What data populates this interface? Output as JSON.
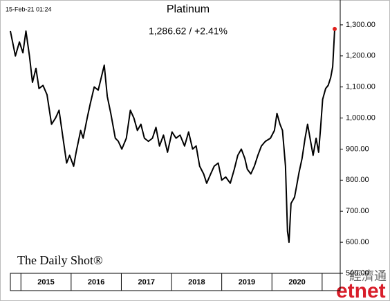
{
  "chart_data": {
    "type": "line",
    "title": "Platinum",
    "subtitle": "1,286.62  /  +2.41%",
    "timestamp": "15-Feb-21 01:24",
    "source": "The Daily Shot®",
    "watermark": "etnet",
    "watermark_cjk": "經濟通",
    "x": [
      2014.79,
      2014.89,
      2014.97,
      2015.04,
      2015.1,
      2015.17,
      2015.23,
      2015.3,
      2015.36,
      2015.44,
      2015.52,
      2015.61,
      2015.69,
      2015.76,
      2015.83,
      2015.91,
      2015.97,
      2016.05,
      2016.1,
      2016.19,
      2016.24,
      2016.32,
      2016.38,
      2016.46,
      2016.54,
      2016.66,
      2016.72,
      2016.79,
      2016.88,
      2016.94,
      2017.01,
      2017.1,
      2017.18,
      2017.25,
      2017.32,
      2017.39,
      2017.46,
      2017.54,
      2017.62,
      2017.69,
      2017.76,
      2017.84,
      2017.92,
      2018.01,
      2018.09,
      2018.17,
      2018.26,
      2018.34,
      2018.42,
      2018.49,
      2018.56,
      2018.64,
      2018.7,
      2018.78,
      2018.85,
      2018.93,
      2019.0,
      2019.08,
      2019.17,
      2019.25,
      2019.32,
      2019.39,
      2019.46,
      2019.51,
      2019.58,
      2019.65,
      2019.72,
      2019.79,
      2019.87,
      2019.97,
      2020.05,
      2020.1,
      2020.16,
      2020.21,
      2020.27,
      2020.31,
      2020.34,
      2020.38,
      2020.45,
      2020.49,
      2020.54,
      2020.6,
      2020.66,
      2020.71,
      2020.77,
      2020.82,
      2020.88,
      2020.93,
      2020.97,
      2021.01,
      2021.07,
      2021.12,
      2021.17,
      2021.21,
      2021.25
    ],
    "series": [
      {
        "name": "Platinum",
        "color": "#000000",
        "marker_color": "#e0201b",
        "values": [
          1280,
          1200,
          1245,
          1210,
          1280,
          1200,
          1115,
          1160,
          1095,
          1105,
          1075,
          980,
          1000,
          1025,
          945,
          855,
          880,
          845,
          890,
          960,
          935,
          1000,
          1045,
          1100,
          1090,
          1170,
          1070,
          1015,
          935,
          925,
          900,
          935,
          1025,
          1000,
          960,
          980,
          935,
          925,
          935,
          970,
          910,
          945,
          890,
          955,
          935,
          945,
          910,
          955,
          900,
          910,
          845,
          820,
          790,
          820,
          845,
          855,
          800,
          810,
          790,
          835,
          880,
          900,
          870,
          835,
          820,
          845,
          880,
          910,
          925,
          935,
          960,
          1015,
          980,
          960,
          845,
          635,
          600,
          725,
          745,
          780,
          825,
          870,
          935,
          980,
          925,
          880,
          935,
          890,
          970,
          1060,
          1095,
          1105,
          1130,
          1165,
          1286.62
        ]
      }
    ],
    "xlim": [
      2014.79,
      2021.36
    ],
    "xticks": [
      {
        "value": 2015.5,
        "label": "2015"
      },
      {
        "value": 2016.5,
        "label": "2016"
      },
      {
        "value": 2017.5,
        "label": "2017"
      },
      {
        "value": 2018.5,
        "label": "2018"
      },
      {
        "value": 2019.5,
        "label": "2019"
      },
      {
        "value": 2020.5,
        "label": "2020"
      }
    ],
    "xbounds": [
      2015,
      2016,
      2017,
      2018,
      2019,
      2020,
      2021
    ],
    "ylim": [
      500,
      1380
    ],
    "yticks": [
      {
        "value": 500,
        "label": "500.00"
      },
      {
        "value": 600,
        "label": "600.00"
      },
      {
        "value": 700,
        "label": "700.00"
      },
      {
        "value": 800,
        "label": "800.00"
      },
      {
        "value": 900,
        "label": "900.00"
      },
      {
        "value": 1000,
        "label": "1,000.00"
      },
      {
        "value": 1100,
        "label": "1,100.00"
      },
      {
        "value": 1200,
        "label": "1,200.00"
      },
      {
        "value": 1300,
        "label": "1,300.00"
      }
    ]
  }
}
